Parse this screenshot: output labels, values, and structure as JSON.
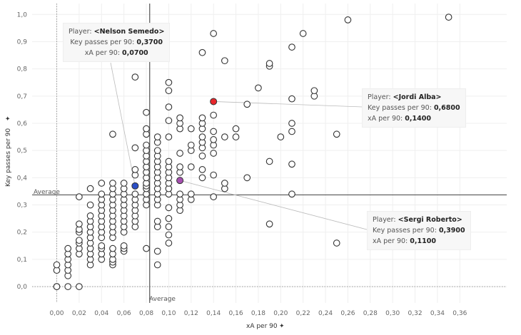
{
  "chart_data": {
    "type": "scatter",
    "xlabel": "xA per 90",
    "ylabel": "Key passes per 90",
    "xlim": [
      -0.022,
      0.37
    ],
    "ylim": [
      -0.06,
      1.04
    ],
    "x_ticks": [
      "0,00",
      "0,02",
      "0,04",
      "0,06",
      "0,08",
      "0,10",
      "0,12",
      "0,14",
      "0,16",
      "0,18",
      "0,20",
      "0,22",
      "0,24",
      "0,26",
      "0,28",
      "0,30",
      "0,32",
      "0,34",
      "0,36"
    ],
    "x_tick_values": [
      0,
      0.02,
      0.04,
      0.06,
      0.08,
      0.1,
      0.12,
      0.14,
      0.16,
      0.18,
      0.2,
      0.22,
      0.24,
      0.26,
      0.28,
      0.3,
      0.32,
      0.34,
      0.36
    ],
    "y_ticks": [
      "0,0",
      "0,1",
      "0,2",
      "0,3",
      "0,4",
      "0,5",
      "0,6",
      "0,7",
      "0,8",
      "0,9",
      "1,0"
    ],
    "y_tick_values": [
      0,
      0.1,
      0.2,
      0.3,
      0.4,
      0.5,
      0.6,
      0.7,
      0.8,
      0.9,
      1.0
    ],
    "grid": true,
    "average": {
      "x": 0.083,
      "y": 0.337,
      "label": "Average"
    },
    "columns": [
      [
        0.0,
        [
          0.0,
          0.0,
          0.06,
          0.08
        ]
      ],
      [
        0.01,
        [
          0.0,
          0.04,
          0.06,
          0.08,
          0.1,
          0.12,
          0.14
        ]
      ],
      [
        0.02,
        [
          0.0,
          0.12,
          0.14,
          0.16,
          0.17,
          0.2,
          0.21,
          0.23,
          0.33
        ]
      ],
      [
        0.03,
        [
          0.08,
          0.1,
          0.12,
          0.14,
          0.16,
          0.18,
          0.2,
          0.22,
          0.24,
          0.26,
          0.3,
          0.36
        ]
      ],
      [
        0.04,
        [
          0.1,
          0.12,
          0.14,
          0.15,
          0.18,
          0.2,
          0.22,
          0.24,
          0.26,
          0.28,
          0.3,
          0.32,
          0.34,
          0.38
        ]
      ],
      [
        0.05,
        [
          0.08,
          0.09,
          0.1,
          0.12,
          0.14,
          0.18,
          0.2,
          0.22,
          0.24,
          0.26,
          0.28,
          0.3,
          0.32,
          0.34,
          0.36,
          0.38,
          0.56
        ]
      ],
      [
        0.06,
        [
          0.13,
          0.14,
          0.15,
          0.2,
          0.22,
          0.24,
          0.26,
          0.28,
          0.3,
          0.32,
          0.34,
          0.36,
          0.38
        ]
      ],
      [
        0.07,
        [
          0.22,
          0.24,
          0.26,
          0.28,
          0.3,
          0.32,
          0.34,
          0.41,
          0.43,
          0.51,
          0.77
        ]
      ],
      [
        0.08,
        [
          0.14,
          0.3,
          0.32,
          0.34,
          0.36,
          0.37,
          0.38,
          0.4,
          0.42,
          0.44,
          0.46,
          0.48,
          0.5,
          0.52,
          0.56,
          0.58,
          0.64
        ]
      ],
      [
        0.09,
        [
          0.08,
          0.13,
          0.22,
          0.24,
          0.3,
          0.32,
          0.34,
          0.36,
          0.38,
          0.4,
          0.42,
          0.44,
          0.46,
          0.48,
          0.5,
          0.53,
          0.55
        ]
      ],
      [
        0.1,
        [
          0.16,
          0.19,
          0.22,
          0.25,
          0.29,
          0.34,
          0.36,
          0.38,
          0.4,
          0.42,
          0.44,
          0.46,
          0.55,
          0.61,
          0.66,
          0.72,
          0.75
        ]
      ],
      [
        0.11,
        [
          0.28,
          0.3,
          0.32,
          0.34,
          0.42,
          0.44,
          0.49,
          0.58,
          0.6,
          0.62
        ]
      ],
      [
        0.12,
        [
          0.32,
          0.34,
          0.44,
          0.5,
          0.52,
          0.58
        ]
      ],
      [
        0.13,
        [
          0.4,
          0.43,
          0.48,
          0.51,
          0.53,
          0.55,
          0.58,
          0.6,
          0.62,
          0.86
        ]
      ],
      [
        0.14,
        [
          0.33,
          0.41,
          0.49,
          0.52,
          0.54,
          0.57,
          0.63,
          0.93
        ]
      ],
      [
        0.15,
        [
          0.36,
          0.38,
          0.55,
          0.83
        ]
      ],
      [
        0.16,
        [
          0.55,
          0.58
        ]
      ],
      [
        0.17,
        [
          0.4,
          0.67
        ]
      ],
      [
        0.18,
        [
          0.73
        ]
      ],
      [
        0.19,
        [
          0.23,
          0.46,
          0.81,
          0.82
        ]
      ],
      [
        0.2,
        [
          0.55
        ]
      ],
      [
        0.21,
        [
          0.34,
          0.45,
          0.57,
          0.6,
          0.69,
          0.88
        ]
      ],
      [
        0.22,
        [
          0.93
        ]
      ],
      [
        0.23,
        [
          0.7,
          0.72
        ]
      ],
      [
        0.25,
        [
          0.16,
          0.56
        ]
      ],
      [
        0.26,
        [
          0.98
        ]
      ],
      [
        0.35,
        [
          0.99
        ]
      ]
    ],
    "highlighted": [
      {
        "player": "<Nelson Semedo>",
        "x": 0.07,
        "y": 0.37,
        "color": "#2b4fc7",
        "tooltip": "nelson"
      },
      {
        "player": "<Jordi Alba>",
        "x": 0.14,
        "y": 0.68,
        "color": "#e8262b",
        "tooltip": "jordi"
      },
      {
        "player": "<Sergi Roberto>",
        "x": 0.11,
        "y": 0.39,
        "color": "#a64fb0",
        "tooltip": "sergi"
      }
    ]
  },
  "tooltips": {
    "player_label": "Player:",
    "kp_label": "Key passes per 90:",
    "xa_label": "xA per 90:",
    "nelson": {
      "player": "<Nelson Semedo>",
      "kp": "0,3700",
      "xa": "0,0700"
    },
    "jordi": {
      "player": "<Jordi Alba>",
      "kp": "0,6800",
      "xa": "0,1400"
    },
    "sergi": {
      "player": "<Sergi Roberto>",
      "kp": "0,3900",
      "xa": "0,1100"
    }
  }
}
